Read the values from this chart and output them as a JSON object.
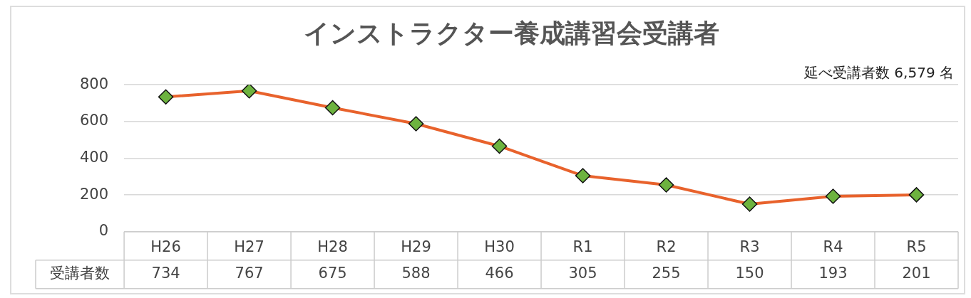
{
  "chart_data": {
    "type": "line",
    "title": "インストラクター養成講習会受講者",
    "annotations": [
      "延べ受講者数 6,579 名"
    ],
    "categories": [
      "H26",
      "H27",
      "H28",
      "H29",
      "H30",
      "R1",
      "R2",
      "R3",
      "R4",
      "R5"
    ],
    "series": [
      {
        "name": "受講者数",
        "color": "#e8622c",
        "values": [
          734,
          767,
          675,
          588,
          466,
          305,
          255,
          150,
          193,
          201
        ]
      }
    ],
    "ylim": [
      0,
      800
    ],
    "yticks": [
      0,
      200,
      400,
      600,
      800
    ],
    "grid": "y",
    "legend": false,
    "marker": "diamond",
    "line_style": "solid",
    "data_labels": true
  }
}
